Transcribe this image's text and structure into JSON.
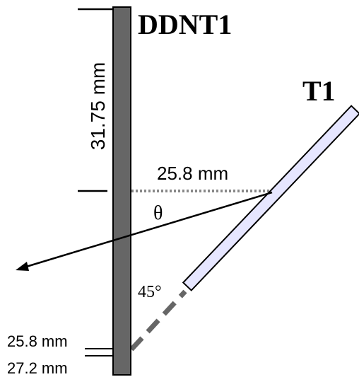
{
  "labels": {
    "detector": "DDNT1",
    "target": "T1",
    "height": "31.75 mm",
    "distance": "25.8 mm",
    "angle": "θ",
    "tilt": "45°",
    "bottom_upper": "25.8 mm",
    "bottom_lower": "27.2 mm"
  }
}
